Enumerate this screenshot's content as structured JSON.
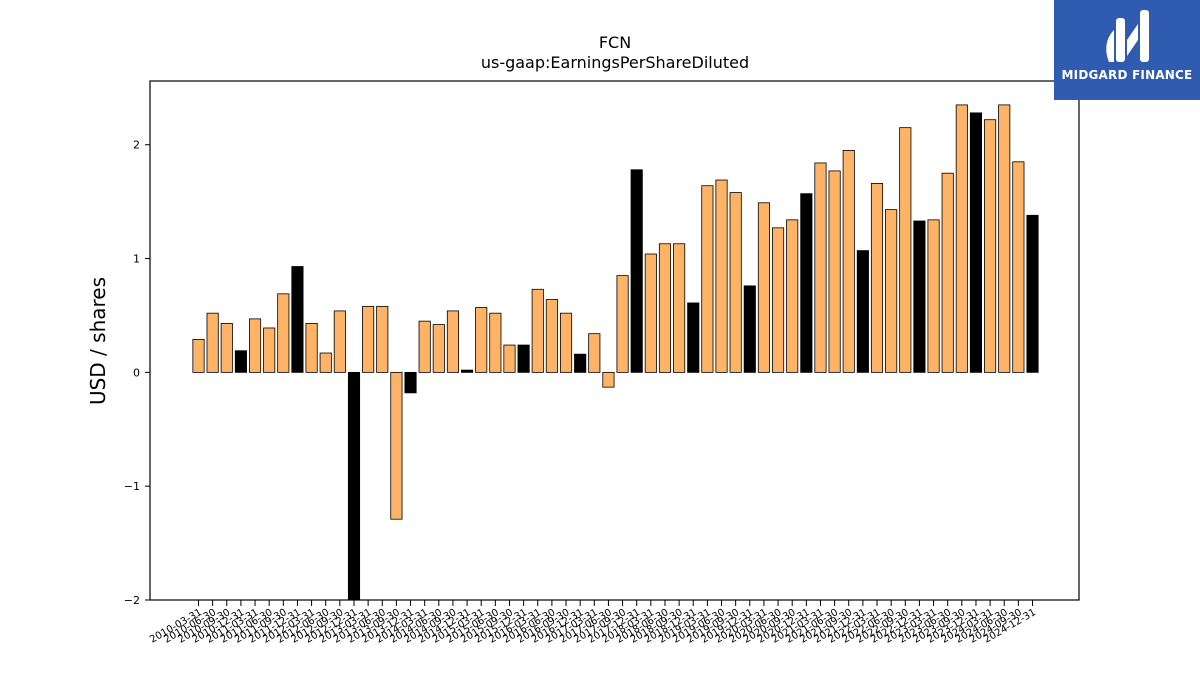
{
  "chart_data": {
    "type": "bar",
    "title": "FCN",
    "subtitle": "us-gaap:EarningsPerShareDiluted",
    "xlabel": "",
    "ylabel": "USD / shares",
    "ylim": [
      -2.0,
      2.56
    ],
    "yticks": [
      -2,
      -1,
      0,
      1,
      2
    ],
    "ytick_labels": [
      "−2",
      "−1",
      "0",
      "1",
      "2"
    ],
    "grid": false,
    "colors": {
      "quarter": "#ffb366",
      "annual": "#000000",
      "edge": "#000000"
    },
    "categories": [
      "2010-03-31",
      "2010-06-30",
      "2010-09-30",
      "2010-12-31",
      "2011-03-31",
      "2011-06-30",
      "2011-09-30",
      "2011-12-31",
      "2012-03-31",
      "2012-06-30",
      "2012-09-30",
      "2012-12-31",
      "2013-03-31",
      "2013-06-30",
      "2013-09-30",
      "2013-12-31",
      "2014-03-31",
      "2014-06-30",
      "2014-09-30",
      "2014-12-31",
      "2015-03-31",
      "2015-06-30",
      "2015-09-30",
      "2015-12-31",
      "2016-03-31",
      "2016-06-30",
      "2016-09-30",
      "2016-12-31",
      "2017-03-31",
      "2017-06-30",
      "2017-09-30",
      "2017-12-31",
      "2018-03-31",
      "2018-06-30",
      "2018-09-30",
      "2018-12-31",
      "2019-03-31",
      "2019-06-30",
      "2019-09-30",
      "2019-12-31",
      "2020-03-31",
      "2020-06-30",
      "2020-09-30",
      "2020-12-31",
      "2021-03-31",
      "2021-06-30",
      "2021-09-30",
      "2021-12-31",
      "2022-03-31",
      "2022-06-30",
      "2022-09-30",
      "2022-12-31",
      "2023-03-31",
      "2023-06-30",
      "2023-09-30",
      "2023-12-31",
      "2024-03-31",
      "2024-06-30",
      "2024-09-30",
      "2024-12-31"
    ],
    "values": [
      0.29,
      0.52,
      0.43,
      0.19,
      0.47,
      0.39,
      0.69,
      0.93,
      0.43,
      0.17,
      0.54,
      -2.1,
      0.58,
      0.58,
      -1.29,
      -0.18,
      0.45,
      0.42,
      0.54,
      0.02,
      0.57,
      0.52,
      0.24,
      0.24,
      0.73,
      0.64,
      0.52,
      0.16,
      0.34,
      -0.13,
      0.85,
      1.78,
      1.04,
      1.13,
      1.13,
      0.61,
      1.64,
      1.69,
      1.58,
      0.76,
      1.49,
      1.27,
      1.34,
      1.57,
      1.84,
      1.77,
      1.95,
      1.07,
      1.66,
      1.43,
      2.15,
      1.33,
      1.34,
      1.75,
      2.35,
      2.28,
      2.22,
      2.35,
      1.85,
      1.38
    ],
    "annual": [
      false,
      false,
      false,
      true,
      false,
      false,
      false,
      true,
      false,
      false,
      false,
      true,
      false,
      false,
      false,
      true,
      false,
      false,
      false,
      true,
      false,
      false,
      false,
      true,
      false,
      false,
      false,
      true,
      false,
      false,
      false,
      true,
      false,
      false,
      false,
      true,
      false,
      false,
      false,
      true,
      false,
      false,
      false,
      true,
      false,
      false,
      false,
      true,
      false,
      false,
      false,
      true,
      false,
      false,
      false,
      true,
      false,
      false,
      false,
      true
    ]
  },
  "logo": {
    "text": "MIDGARD FINANCE",
    "icon": "midgard-logo-icon"
  }
}
